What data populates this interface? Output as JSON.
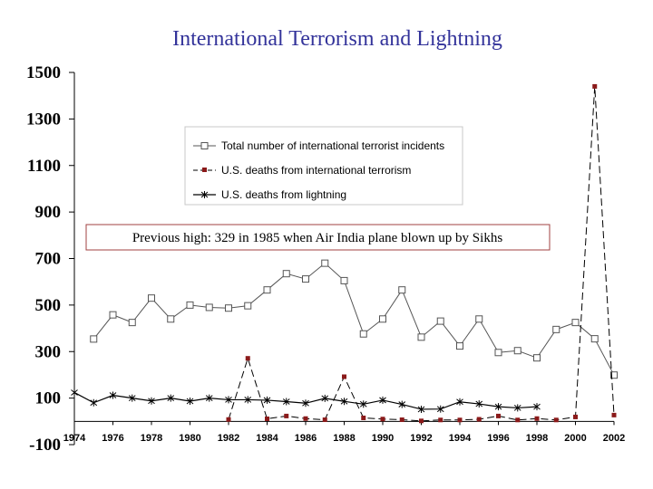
{
  "chart_data": {
    "type": "line",
    "title": "International Terrorism and Lightning",
    "xlabel": "",
    "ylabel": "",
    "ylim": [
      -100,
      1500
    ],
    "xlim": [
      1974,
      2002
    ],
    "y_ticks": [
      "1500",
      "1300",
      "1100",
      "900",
      "700",
      "500",
      "300",
      "100",
      "-100"
    ],
    "y_tick_values": [
      1500,
      1300,
      1100,
      900,
      700,
      500,
      300,
      100,
      -100
    ],
    "x_ticks": [
      "1974",
      "1976",
      "1978",
      "1980",
      "1982",
      "1984",
      "1986",
      "1988",
      "1990",
      "1992",
      "1994",
      "1996",
      "1998",
      "2000",
      "2002"
    ],
    "x_tick_values": [
      1974,
      1976,
      1978,
      1980,
      1982,
      1984,
      1986,
      1988,
      1990,
      1992,
      1994,
      1996,
      1998,
      2000,
      2002
    ],
    "legend_position": "upper-right",
    "series": [
      {
        "name": "Total number of international terrorist incidents",
        "marker": "open-square",
        "color": "#555555",
        "x": [
          1975,
          1976,
          1977,
          1978,
          1979,
          1980,
          1981,
          1982,
          1983,
          1984,
          1985,
          1986,
          1987,
          1988,
          1989,
          1990,
          1991,
          1992,
          1993,
          1994,
          1995,
          1996,
          1997,
          1998,
          1999,
          2000,
          2001,
          2002
        ],
        "values": [
          354,
          458,
          425,
          530,
          440,
          500,
          490,
          487,
          497,
          565,
          635,
          612,
          680,
          605,
          376,
          440,
          565,
          362,
          431,
          324,
          440,
          296,
          304,
          273,
          395,
          425,
          355,
          199
        ]
      },
      {
        "name": "U.S. deaths from international terrorism",
        "marker": "filled-square",
        "color": "#8b1a1a",
        "x": [
          1982,
          1983,
          1984,
          1985,
          1986,
          1987,
          1988,
          1989,
          1990,
          1991,
          1992,
          1993,
          1994,
          1995,
          1996,
          1997,
          1998,
          1999,
          2000,
          2001,
          2002
        ],
        "values": [
          8,
          271,
          11,
          23,
          12,
          7,
          192,
          15,
          10,
          7,
          2,
          6,
          6,
          9,
          23,
          6,
          12,
          6,
          19,
          1440,
          27
        ]
      },
      {
        "name": "U.S. deaths from lightning",
        "marker": "star",
        "color": "#000000",
        "x": [
          1974,
          1975,
          1976,
          1977,
          1978,
          1979,
          1980,
          1981,
          1982,
          1983,
          1984,
          1985,
          1986,
          1987,
          1988,
          1989,
          1990,
          1991,
          1992,
          1993,
          1994,
          1995,
          1996,
          1997,
          1998
        ],
        "values": [
          124,
          80,
          112,
          100,
          88,
          100,
          87,
          100,
          93,
          93,
          91,
          85,
          78,
          99,
          86,
          74,
          91,
          73,
          52,
          53,
          84,
          75,
          63,
          58,
          63
        ]
      }
    ],
    "annotation": "Previous high: 329 in 1985 when Air India plane blown up by Sikhs"
  }
}
